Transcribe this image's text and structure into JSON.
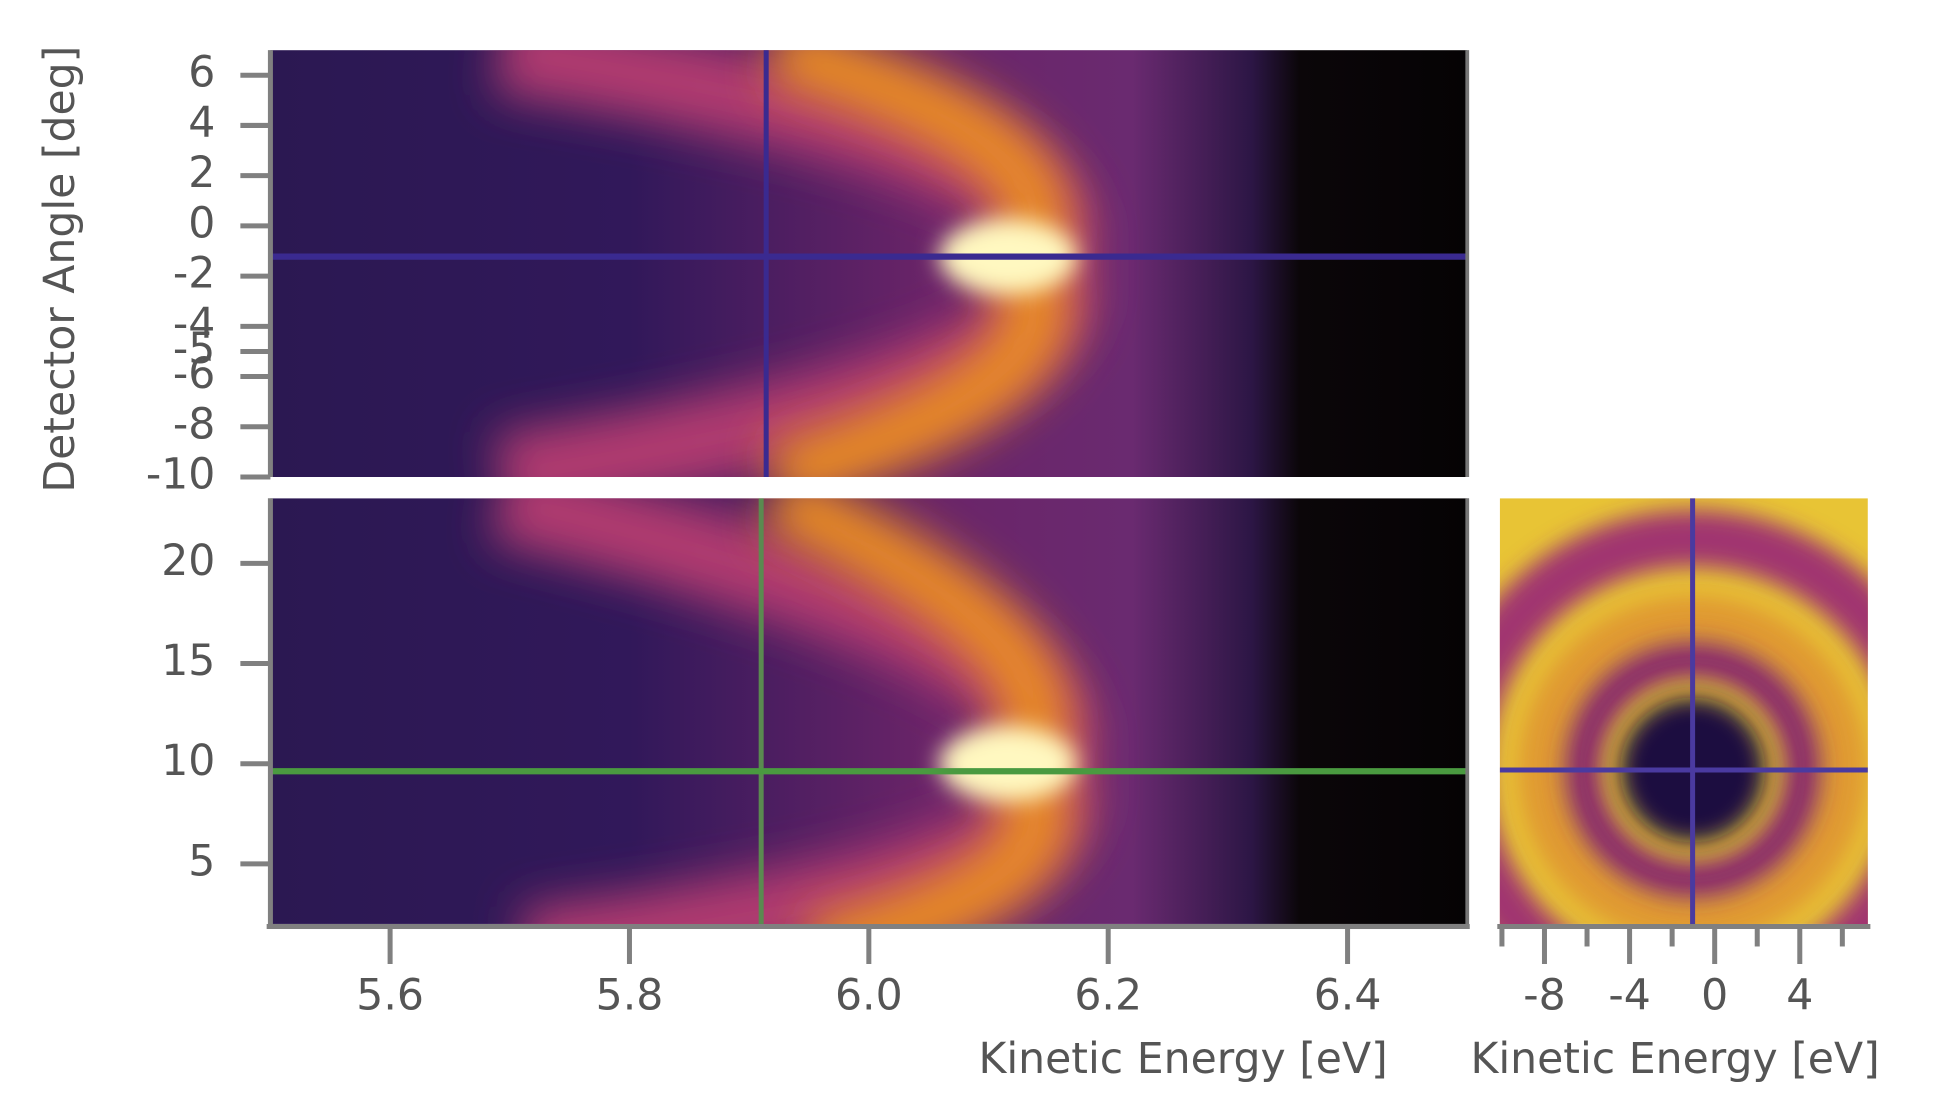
{
  "chart_data": [
    {
      "type": "heatmap",
      "ylabel": "Detector Angle [deg]",
      "ylim": [
        -10,
        7
      ],
      "yticks": [
        6,
        4,
        2,
        0,
        -2,
        -4,
        -5,
        -6,
        -8,
        -10
      ]
    },
    {
      "type": "heatmap",
      "xlabel": "Kinetic Energy [eV]",
      "xlim": [
        5.5,
        6.5
      ],
      "xticks": [
        5.6,
        5.8,
        {
          "value": 6.0,
          "label": "6.0"
        },
        6.2,
        6.4
      ],
      "ylim": [
        2,
        23.25
      ],
      "yticks": [
        5,
        10,
        15,
        20
      ]
    },
    {
      "type": "heatmap",
      "xlabel": "Kinetic Energy [eV]",
      "xlim": [
        -10.1,
        7.2
      ],
      "xticks": [
        -8,
        -4,
        0,
        4
      ],
      "xminorticks": [
        -10,
        -6,
        -2,
        2,
        6
      ]
    }
  ]
}
